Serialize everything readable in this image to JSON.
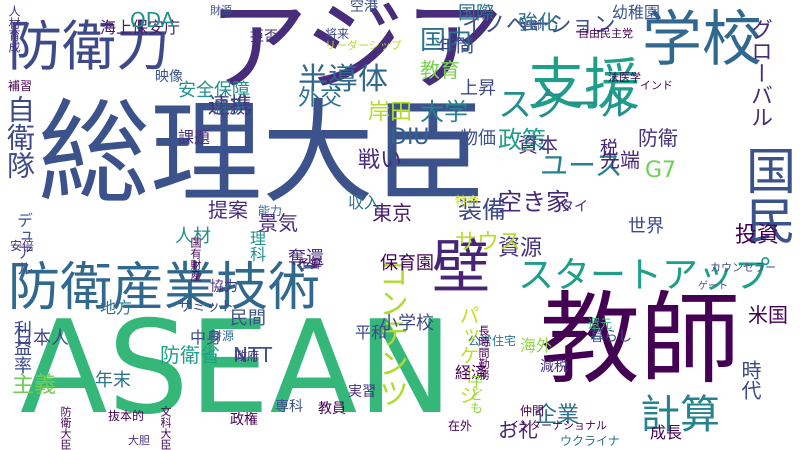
{
  "words": [
    {
      "text": "総理大臣",
      "color": "#3b528b",
      "vertical": false
    },
    {
      "text": "アジア",
      "color": "#472d7b",
      "vertical": false
    },
    {
      "text": "ASEAN",
      "color": "#35b779",
      "vertical": false
    },
    {
      "text": "教師",
      "color": "#440154",
      "vertical": false
    },
    {
      "text": "防衛力",
      "color": "#3e4989",
      "vertical": false
    },
    {
      "text": "国民",
      "color": "#3b528b",
      "vertical": true
    },
    {
      "text": "防衛産業技術",
      "color": "#31688e",
      "vertical": false
    },
    {
      "text": "学校",
      "color": "#31688e",
      "vertical": false
    },
    {
      "text": "支援",
      "color": "#1f9e89",
      "vertical": false
    },
    {
      "text": "壁",
      "color": "#482475",
      "vertical": false
    },
    {
      "text": "スタートアップ",
      "color": "#1f9e89",
      "vertical": false
    },
    {
      "text": "スクール",
      "color": "#21918c",
      "vertical": false
    },
    {
      "text": "計算",
      "color": "#26828e",
      "vertical": false
    },
    {
      "text": "グローバル",
      "color": "#472c7a",
      "vertical": true
    },
    {
      "text": "自衛隊",
      "color": "#3e4989",
      "vertical": true
    },
    {
      "text": "コンテンツ",
      "color": "#addc30",
      "vertical": true
    },
    {
      "text": "ユース",
      "color": "#26828e",
      "vertical": false
    },
    {
      "text": "半導体",
      "color": "#31688e",
      "vertical": false
    },
    {
      "text": "G7",
      "color": "#6ece58",
      "vertical": false
    },
    {
      "text": "国内",
      "color": "#2c728e",
      "vertical": false
    },
    {
      "text": "政策",
      "color": "#1f9e89",
      "vertical": false
    },
    {
      "text": "大学",
      "color": "#26828e",
      "vertical": false
    },
    {
      "text": "空き家",
      "color": "#482878",
      "vertical": false
    },
    {
      "text": "装備",
      "color": "#3e4989",
      "vertical": false
    },
    {
      "text": "DIU",
      "color": "#33638d",
      "vertical": false
    },
    {
      "text": "利益率",
      "color": "#3e4989",
      "vertical": true
    },
    {
      "text": "外交",
      "color": "#2c728e",
      "vertical": false
    },
    {
      "text": "連携",
      "color": "#46327e",
      "vertical": false
    },
    {
      "text": "戦い",
      "color": "#482878",
      "vertical": false
    },
    {
      "text": "投資",
      "color": "#440154",
      "vertical": false
    },
    {
      "text": "企業",
      "color": "#2c728e",
      "vertical": false
    },
    {
      "text": "イノベーション",
      "color": "#3b528b",
      "vertical": false
    },
    {
      "text": "資源",
      "color": "#46327e",
      "vertical": false
    },
    {
      "text": "岸田",
      "color": "#b5de2b",
      "vertical": false
    },
    {
      "text": "強化",
      "color": "#2c728e",
      "vertical": false
    },
    {
      "text": "資本",
      "color": "#46327e",
      "vertical": false
    },
    {
      "text": "米国",
      "color": "#440154",
      "vertical": false
    },
    {
      "text": "時代",
      "color": "#3e4989",
      "vertical": true
    },
    {
      "text": "サウス",
      "color": "#b5de2b",
      "vertical": false
    },
    {
      "text": "パッケージ",
      "color": "#c2df23",
      "vertical": true
    },
    {
      "text": "提案",
      "color": "#472d7b",
      "vertical": false
    },
    {
      "text": "景気",
      "color": "#482878",
      "vertical": false
    },
    {
      "text": "防衛省",
      "color": "#1fa187",
      "vertical": false
    },
    {
      "text": "お礼",
      "color": "#482475",
      "vertical": false
    },
    {
      "text": "東京",
      "color": "#481a6c",
      "vertical": false
    },
    {
      "text": "NTT",
      "color": "#3b528b",
      "vertical": false
    },
    {
      "text": "防衛",
      "color": "#46327e",
      "vertical": false
    },
    {
      "text": "国際",
      "color": "#2c728e",
      "vertical": false
    },
    {
      "text": "主義",
      "color": "#6ece58",
      "vertical": false
    },
    {
      "text": "デュアル",
      "color": "#3b528b",
      "vertical": true
    },
    {
      "text": "年末",
      "color": "#2c728e",
      "vertical": false
    },
    {
      "text": "海上保安庁",
      "color": "#481a6c",
      "vertical": false
    },
    {
      "text": "ODA",
      "color": "#21918c",
      "vertical": false
    },
    {
      "text": "税",
      "color": "#482878",
      "vertical": false
    },
    {
      "text": "先端",
      "color": "#482475",
      "vertical": false
    },
    {
      "text": "保育園",
      "color": "#440154",
      "vertical": false
    },
    {
      "text": "小学校",
      "color": "#3e4989",
      "vertical": false
    },
    {
      "text": "民間",
      "color": "#3b528b",
      "vertical": false
    },
    {
      "text": "日本人",
      "color": "#3e4989",
      "vertical": false
    },
    {
      "text": "教育",
      "color": "#7ad151",
      "vertical": false
    },
    {
      "text": "年間",
      "color": "#3e4989",
      "vertical": false
    },
    {
      "text": "世界",
      "color": "#3e4989",
      "vertical": false
    },
    {
      "text": "安全保障",
      "color": "#21918c",
      "vertical": false
    },
    {
      "text": "物価",
      "color": "#3b528b",
      "vertical": false
    },
    {
      "text": "上昇",
      "color": "#3e4989",
      "vertical": false
    },
    {
      "text": "成長",
      "color": "#440154",
      "vertical": false
    },
    {
      "text": "幼稚園",
      "color": "#3b528b",
      "vertical": false
    },
    {
      "text": "奪還",
      "color": "#482878",
      "vertical": false
    },
    {
      "text": "解決",
      "color": "#31688e",
      "vertical": false
    },
    {
      "text": "人材",
      "color": "#21918c",
      "vertical": false
    },
    {
      "text": "理科",
      "color": "#21918c",
      "vertical": true
    },
    {
      "text": "中身",
      "color": "#3e4989",
      "vertical": false
    },
    {
      "text": "地方",
      "color": "#2c728e",
      "vertical": false
    },
    {
      "text": "海外",
      "color": "#8fd744",
      "vertical": false
    },
    {
      "text": "平和",
      "color": "#3e4989",
      "vertical": false
    },
    {
      "text": "政権",
      "color": "#440154",
      "vertical": false
    },
    {
      "text": "還元",
      "color": "#35b779",
      "vertical": false
    },
    {
      "text": "収入",
      "color": "#2c728e",
      "vertical": false
    },
    {
      "text": "実習",
      "color": "#472d7b",
      "vertical": false
    },
    {
      "text": "教員",
      "color": "#440154",
      "vertical": false
    },
    {
      "text": "課題",
      "color": "#46327e",
      "vertical": false
    },
    {
      "text": "空港",
      "color": "#3b528b",
      "vertical": false
    },
    {
      "text": "拒否",
      "color": "#46327e",
      "vertical": false
    },
    {
      "text": "協力",
      "color": "#46327e",
      "vertical": false
    },
    {
      "text": "タイ",
      "color": "#482878",
      "vertical": false
    },
    {
      "text": "サミット",
      "color": "#3e4989",
      "vertical": false
    },
    {
      "text": "専科",
      "color": "#3b528b",
      "vertical": false
    },
    {
      "text": "映像",
      "color": "#3b528b",
      "vertical": false
    },
    {
      "text": "経済",
      "color": "#440154",
      "vertical": false
    },
    {
      "text": "減税",
      "color": "#46327e",
      "vertical": false
    },
    {
      "text": "子ども",
      "color": "#8fd744",
      "vertical": true
    },
    {
      "text": "暮らし",
      "color": "#3b528b",
      "vertical": false
    },
    {
      "text": "予算",
      "color": "#481a6c",
      "vertical": false
    },
    {
      "text": "能力",
      "color": "#31688e",
      "vertical": false
    },
    {
      "text": "特命",
      "color": "#c2df23",
      "vertical": false
    },
    {
      "text": "政府",
      "color": "#46327e",
      "vertical": false
    },
    {
      "text": "仲間",
      "color": "#440154",
      "vertical": false
    },
    {
      "text": "公営住宅",
      "color": "#2c728e",
      "vertical": false
    },
    {
      "text": "在外",
      "color": "#440154",
      "vertical": false
    },
    {
      "text": "抜本的",
      "color": "#440154",
      "vertical": false
    },
    {
      "text": "リーダーシップ",
      "color": "#b5de2b",
      "vertical": false
    },
    {
      "text": "将来",
      "color": "#3e4989",
      "vertical": false
    },
    {
      "text": "学部",
      "color": "#3e4989",
      "vertical": false
    },
    {
      "text": "自由民主党",
      "color": "#440154",
      "vertical": false
    },
    {
      "text": "財源",
      "color": "#31688e",
      "vertical": false
    },
    {
      "text": "法医学",
      "color": "#440154",
      "vertical": false
    },
    {
      "text": "ウクライナ",
      "color": "#2c728e",
      "vertical": false
    },
    {
      "text": "安倍",
      "color": "#472d7b",
      "vertical": false
    },
    {
      "text": "人材育成",
      "color": "#46327e",
      "vertical": true
    },
    {
      "text": "補習",
      "color": "#440154",
      "vertical": false
    },
    {
      "text": "大胆",
      "color": "#46327e",
      "vertical": false
    },
    {
      "text": "インターナショナル",
      "color": "#440154",
      "vertical": false
    },
    {
      "text": "文科大臣",
      "color": "#440154",
      "vertical": true
    },
    {
      "text": "カウンセラー",
      "color": "#3e4989",
      "vertical": false
    },
    {
      "text": "国有財産",
      "color": "#440154",
      "vertical": true
    },
    {
      "text": "長時間勤務",
      "color": "#440154",
      "vertical": true
    },
    {
      "text": "防衛大臣",
      "color": "#440154",
      "vertical": true
    },
    {
      "text": "ゲート",
      "color": "#3b528b",
      "vertical": false
    },
    {
      "text": "財源",
      "color": "#3b528b",
      "vertical": false
    },
    {
      "text": "インド",
      "color": "#440154",
      "vertical": false
    }
  ]
}
